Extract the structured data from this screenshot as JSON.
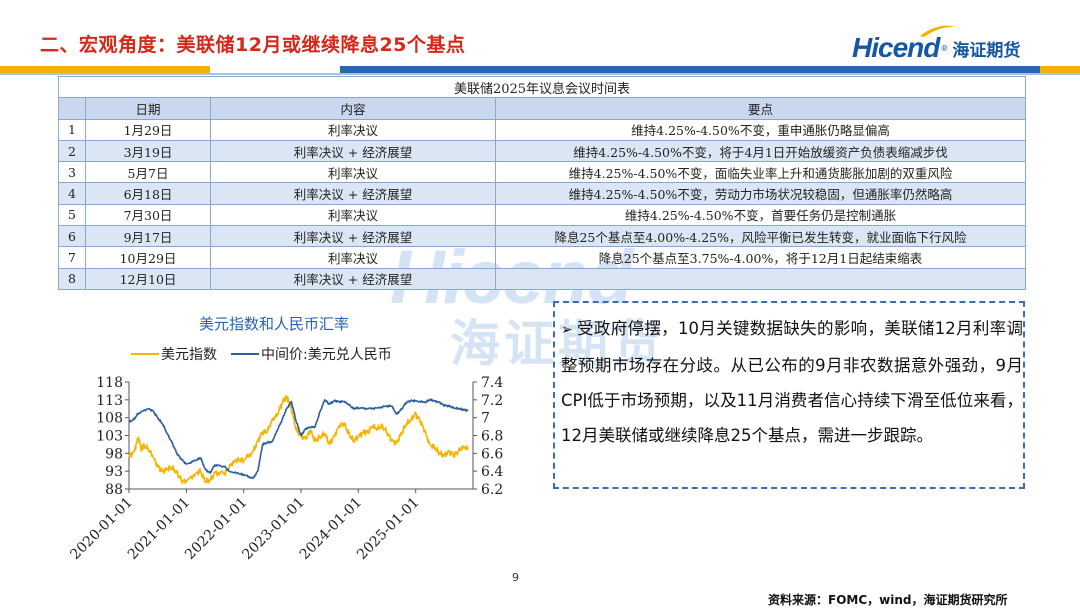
{
  "slide": {
    "title": "二、宏观角度：美联储12月或继续降息25个基点",
    "logo_text": "Hicend",
    "logo_cn": "海证期货",
    "page_number": "9",
    "source": "资料来源：FOMC，wind，海证期货研究所"
  },
  "watermark": {
    "en": "Hicend",
    "cn": "海证期货"
  },
  "table": {
    "caption": "美联储2025年议息会议时间表",
    "headers": [
      "",
      "日期",
      "内容",
      "要点"
    ],
    "rows": [
      {
        "no": "1",
        "date": "1月29日",
        "content": "利率决议",
        "point": "维持4.25%-4.50%不变，重申通胀仍略显偏高"
      },
      {
        "no": "2",
        "date": "3月19日",
        "content": "利率决议 + 经济展望",
        "point": "维持4.25%-4.50%不变，将于4月1日开始放缓资产负债表缩减步伐"
      },
      {
        "no": "3",
        "date": "5月7日",
        "content": "利率决议",
        "point": "维持4.25%-4.50%不变，面临失业率上升和通货膨胀加剧的双重风险"
      },
      {
        "no": "4",
        "date": "6月18日",
        "content": "利率决议 + 经济展望",
        "point": "维持4.25%-4.50%不变，劳动力市场状况较稳固，但通胀率仍然略高"
      },
      {
        "no": "5",
        "date": "7月30日",
        "content": "利率决议",
        "point": "维持4.25%-4.50%不变，首要任务仍是控制通胀"
      },
      {
        "no": "6",
        "date": "9月17日",
        "content": "利率决议 + 经济展望",
        "point": "降息25个基点至4.00%-4.25%，风险平衡已发生转变，就业面临下行风险"
      },
      {
        "no": "7",
        "date": "10月29日",
        "content": "利率决议",
        "point": "降息25个基点至3.75%-4.00%，将于12月1日起结束缩表"
      },
      {
        "no": "8",
        "date": "12月10日",
        "content": "利率决议 + 经济展望",
        "point": ""
      }
    ]
  },
  "chart_data": {
    "type": "line",
    "title": "美元指数和人民币汇率",
    "series": [
      {
        "name": "美元指数",
        "axis": "left",
        "color": "#f5b400",
        "values": [
          [
            "2020-01-01",
            97.0
          ],
          [
            "2020-02-01",
            98.5
          ],
          [
            "2020-03-01",
            102.5
          ],
          [
            "2020-03-20",
            99.0
          ],
          [
            "2020-04-01",
            100.0
          ],
          [
            "2020-05-01",
            99.5
          ],
          [
            "2020-06-01",
            97.0
          ],
          [
            "2020-07-01",
            94.5
          ],
          [
            "2020-08-01",
            93.0
          ],
          [
            "2020-09-01",
            93.5
          ],
          [
            "2020-10-01",
            94.0
          ],
          [
            "2020-11-01",
            92.5
          ],
          [
            "2020-12-01",
            90.5
          ],
          [
            "2021-01-01",
            90.0
          ],
          [
            "2021-03-01",
            92.5
          ],
          [
            "2021-04-01",
            93.0
          ],
          [
            "2021-05-01",
            90.0
          ],
          [
            "2021-06-01",
            90.5
          ],
          [
            "2021-07-01",
            92.5
          ],
          [
            "2021-09-01",
            92.5
          ],
          [
            "2021-10-01",
            94.0
          ],
          [
            "2021-11-01",
            96.0
          ],
          [
            "2021-12-01",
            96.0
          ],
          [
            "2022-01-01",
            96.0
          ],
          [
            "2022-03-01",
            98.5
          ],
          [
            "2022-04-01",
            101.5
          ],
          [
            "2022-05-01",
            104.0
          ],
          [
            "2022-06-01",
            104.0
          ],
          [
            "2022-07-01",
            107.5
          ],
          [
            "2022-08-01",
            108.5
          ],
          [
            "2022-09-01",
            112.0
          ],
          [
            "2022-09-28",
            114.0
          ],
          [
            "2022-10-15",
            112.5
          ],
          [
            "2022-11-01",
            110.5
          ],
          [
            "2022-12-01",
            104.5
          ],
          [
            "2023-01-01",
            103.0
          ],
          [
            "2023-02-01",
            102.0
          ],
          [
            "2023-03-01",
            104.5
          ],
          [
            "2023-04-01",
            101.5
          ],
          [
            "2023-05-01",
            102.5
          ],
          [
            "2023-06-01",
            103.5
          ],
          [
            "2023-07-01",
            100.5
          ],
          [
            "2023-08-01",
            103.0
          ],
          [
            "2023-09-01",
            105.5
          ],
          [
            "2023-10-01",
            106.5
          ],
          [
            "2023-11-01",
            103.5
          ],
          [
            "2023-12-01",
            101.5
          ],
          [
            "2024-01-01",
            102.5
          ],
          [
            "2024-02-01",
            104.0
          ],
          [
            "2024-03-01",
            104.0
          ],
          [
            "2024-04-01",
            105.5
          ],
          [
            "2024-05-01",
            105.0
          ],
          [
            "2024-06-01",
            105.5
          ],
          [
            "2024-07-01",
            104.0
          ],
          [
            "2024-08-01",
            101.5
          ],
          [
            "2024-09-01",
            101.0
          ],
          [
            "2024-10-01",
            103.5
          ],
          [
            "2024-11-01",
            106.0
          ],
          [
            "2024-12-01",
            107.5
          ],
          [
            "2025-01-01",
            109.0
          ],
          [
            "2025-02-01",
            107.0
          ],
          [
            "2025-03-01",
            104.0
          ],
          [
            "2025-04-01",
            100.5
          ],
          [
            "2025-05-01",
            99.5
          ],
          [
            "2025-06-01",
            98.0
          ],
          [
            "2025-07-01",
            97.5
          ],
          [
            "2025-08-01",
            98.5
          ],
          [
            "2025-09-01",
            97.5
          ],
          [
            "2025-10-01",
            98.5
          ],
          [
            "2025-11-01",
            100.0
          ],
          [
            "2025-12-01",
            99.0
          ]
        ]
      },
      {
        "name": "中间价:美元兑人民币",
        "axis": "right",
        "color": "#2d5f9e",
        "values": [
          [
            "2020-01-01",
            6.95
          ],
          [
            "2020-02-01",
            6.98
          ],
          [
            "2020-03-01",
            7.05
          ],
          [
            "2020-05-01",
            7.1
          ],
          [
            "2020-06-01",
            7.08
          ],
          [
            "2020-07-01",
            7.0
          ],
          [
            "2020-08-01",
            6.93
          ],
          [
            "2020-09-01",
            6.82
          ],
          [
            "2020-10-01",
            6.72
          ],
          [
            "2020-11-01",
            6.6
          ],
          [
            "2020-12-01",
            6.53
          ],
          [
            "2021-01-01",
            6.48
          ],
          [
            "2021-03-01",
            6.52
          ],
          [
            "2021-04-01",
            6.55
          ],
          [
            "2021-05-01",
            6.42
          ],
          [
            "2021-06-01",
            6.38
          ],
          [
            "2021-07-01",
            6.47
          ],
          [
            "2021-09-01",
            6.45
          ],
          [
            "2021-10-01",
            6.4
          ],
          [
            "2021-12-01",
            6.37
          ],
          [
            "2022-01-01",
            6.36
          ],
          [
            "2022-03-01",
            6.32
          ],
          [
            "2022-04-01",
            6.4
          ],
          [
            "2022-05-01",
            6.7
          ],
          [
            "2022-06-01",
            6.72
          ],
          [
            "2022-07-01",
            6.73
          ],
          [
            "2022-08-01",
            6.85
          ],
          [
            "2022-09-01",
            6.97
          ],
          [
            "2022-10-01",
            7.1
          ],
          [
            "2022-11-01",
            7.18
          ],
          [
            "2022-12-01",
            6.96
          ],
          [
            "2023-01-01",
            6.8
          ],
          [
            "2023-02-01",
            6.88
          ],
          [
            "2023-03-01",
            6.89
          ],
          [
            "2023-04-01",
            6.9
          ],
          [
            "2023-05-01",
            7.06
          ],
          [
            "2023-06-01",
            7.2
          ],
          [
            "2023-07-01",
            7.15
          ],
          [
            "2023-08-01",
            7.19
          ],
          [
            "2023-09-01",
            7.18
          ],
          [
            "2023-10-01",
            7.18
          ],
          [
            "2023-11-01",
            7.15
          ],
          [
            "2023-12-01",
            7.1
          ],
          [
            "2024-01-01",
            7.11
          ],
          [
            "2024-03-01",
            7.1
          ],
          [
            "2024-05-01",
            7.11
          ],
          [
            "2024-07-01",
            7.13
          ],
          [
            "2024-08-01",
            7.13
          ],
          [
            "2024-09-01",
            7.04
          ],
          [
            "2024-10-01",
            7.09
          ],
          [
            "2024-11-01",
            7.17
          ],
          [
            "2024-12-01",
            7.19
          ],
          [
            "2025-01-01",
            7.19
          ],
          [
            "2025-03-01",
            7.17
          ],
          [
            "2025-04-01",
            7.2
          ],
          [
            "2025-05-01",
            7.19
          ],
          [
            "2025-06-01",
            7.17
          ],
          [
            "2025-07-01",
            7.14
          ],
          [
            "2025-08-01",
            7.13
          ],
          [
            "2025-09-01",
            7.11
          ],
          [
            "2025-10-01",
            7.1
          ],
          [
            "2025-11-01",
            7.09
          ],
          [
            "2025-12-01",
            7.08
          ]
        ]
      }
    ],
    "x_ticks": [
      "2020-01-01",
      "2021-01-01",
      "2022-01-01",
      "2023-01-01",
      "2024-01-01",
      "2025-01-01"
    ],
    "y_left": {
      "min": 88,
      "max": 118,
      "ticks": [
        "118",
        "113",
        "108",
        "103",
        "98",
        "93",
        "88"
      ]
    },
    "y_right": {
      "min": 6.2,
      "max": 7.4,
      "ticks": [
        "7.4",
        "7.2",
        "7",
        "6.8",
        "6.6",
        "6.4",
        "6.2"
      ]
    },
    "legend": "top",
    "grid": false
  },
  "textbox": {
    "bullet": "➢",
    "text": "受政府停摆，10月关键数据缺失的影响，美联储12月利率调整预期市场存在分歧。从已公布的9月非农数据意外强劲，9月CPI低于市场预期，以及11月消费者信心持续下滑至低位来看，12月美联储或继续降息25个基点，需进一步跟踪。"
  }
}
